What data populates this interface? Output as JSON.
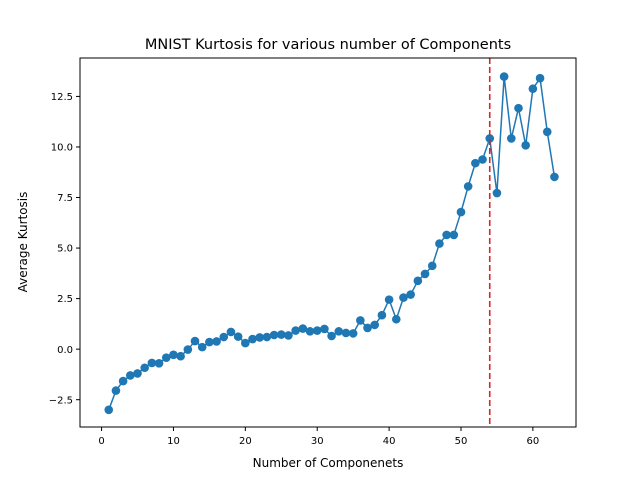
{
  "chart_data": {
    "type": "line",
    "title": "MNIST Kurtosis for various number of Components",
    "xlabel": "Number of Componenets",
    "ylabel": "Average Kurtosis",
    "xlim": [
      -3,
      66
    ],
    "ylim": [
      -3.85,
      14.4
    ],
    "xticks": [
      0,
      10,
      20,
      30,
      40,
      50,
      60
    ],
    "xtick_labels": [
      "0",
      "10",
      "20",
      "30",
      "40",
      "50",
      "60"
    ],
    "yticks": [
      -2.5,
      0.0,
      2.5,
      5.0,
      7.5,
      10.0,
      12.5
    ],
    "ytick_labels": [
      "−2.5",
      "0.0",
      "2.5",
      "5.0",
      "7.5",
      "10.0",
      "12.5"
    ],
    "grid": false,
    "markers": true,
    "series": [
      {
        "color": "#1f77b4",
        "x": [
          1,
          2,
          3,
          4,
          5,
          6,
          7,
          8,
          9,
          10,
          11,
          12,
          13,
          14,
          15,
          16,
          17,
          18,
          19,
          20,
          21,
          22,
          23,
          24,
          25,
          26,
          27,
          28,
          29,
          30,
          31,
          32,
          33,
          34,
          35,
          36,
          37,
          38,
          39,
          40,
          41,
          42,
          43,
          44,
          45,
          46,
          47,
          48,
          49,
          50,
          51,
          52,
          53,
          54,
          55,
          56,
          57,
          58,
          59,
          60,
          61,
          62,
          63
        ],
        "y": [
          -3.0,
          -2.05,
          -1.58,
          -1.3,
          -1.2,
          -0.92,
          -0.68,
          -0.7,
          -0.42,
          -0.28,
          -0.35,
          -0.02,
          0.4,
          0.1,
          0.35,
          0.38,
          0.6,
          0.85,
          0.62,
          0.3,
          0.5,
          0.58,
          0.6,
          0.7,
          0.72,
          0.68,
          0.92,
          1.02,
          0.88,
          0.92,
          1.0,
          0.65,
          0.88,
          0.8,
          0.78,
          1.42,
          1.05,
          1.2,
          1.68,
          2.45,
          1.48,
          2.55,
          2.7,
          3.38,
          3.72,
          4.12,
          5.22,
          5.65,
          5.65,
          6.78,
          8.05,
          9.2,
          9.38,
          10.42,
          7.72,
          13.48,
          10.42,
          11.92,
          10.08,
          12.88,
          13.4,
          10.75,
          8.52
        ]
      }
    ],
    "vline": {
      "x": 54,
      "color": "#d62728",
      "style": "dashed"
    }
  }
}
